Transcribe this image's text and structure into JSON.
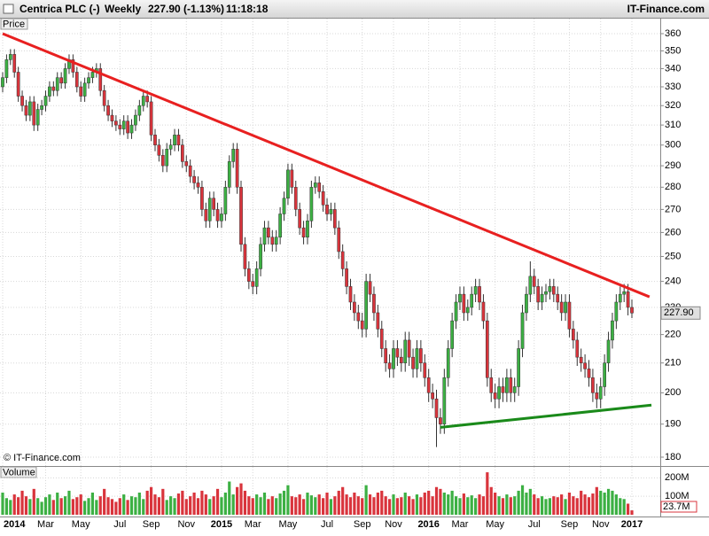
{
  "header": {
    "name": "Centrica PLC (-)",
    "period": "Weekly",
    "quote": "227.90 (-1.13%)",
    "time": "11:18:18",
    "brand": "IT-Finance.com"
  },
  "chart_data": {
    "type": "candlestick",
    "panel_label": "Price",
    "copyright": "© IT-Finance.com",
    "log_scale": true,
    "grid": true,
    "up_color": "#3cb043",
    "down_color": "#d9343c",
    "categories": [
      "2014",
      null,
      null,
      null,
      null,
      null,
      null,
      null,
      null,
      null,
      null,
      "Mar",
      null,
      null,
      null,
      null,
      null,
      null,
      null,
      null,
      "May",
      null,
      null,
      null,
      null,
      null,
      null,
      null,
      null,
      null,
      "Jul",
      null,
      null,
      null,
      null,
      null,
      null,
      null,
      "Sep",
      null,
      null,
      null,
      null,
      null,
      null,
      null,
      null,
      "Nov",
      null,
      null,
      null,
      null,
      null,
      null,
      null,
      null,
      "2015",
      null,
      null,
      null,
      null,
      null,
      null,
      null,
      "Mar",
      null,
      null,
      null,
      null,
      null,
      null,
      null,
      null,
      "May",
      null,
      null,
      null,
      null,
      null,
      null,
      null,
      null,
      null,
      "Jul",
      null,
      null,
      null,
      null,
      null,
      null,
      null,
      null,
      "Sep",
      null,
      null,
      null,
      null,
      null,
      null,
      null,
      "Nov",
      null,
      null,
      null,
      null,
      null,
      null,
      null,
      null,
      "2016",
      null,
      null,
      null,
      null,
      null,
      null,
      null,
      "Mar",
      null,
      null,
      null,
      null,
      null,
      null,
      null,
      null,
      "May",
      null,
      null,
      null,
      null,
      null,
      null,
      null,
      null,
      null,
      "Jul",
      null,
      null,
      null,
      null,
      null,
      null,
      null,
      null,
      "Sep",
      null,
      null,
      null,
      null,
      null,
      null,
      null,
      "Nov",
      null,
      null,
      null,
      null,
      null,
      null,
      null,
      "2017"
    ],
    "open": [
      330,
      335,
      345,
      348,
      338,
      325,
      320,
      315,
      322,
      310,
      318,
      320,
      325,
      330,
      328,
      335,
      332,
      340,
      345,
      338,
      330,
      325,
      332,
      335,
      338,
      340,
      328,
      320,
      315,
      312,
      310,
      308,
      312,
      306,
      310,
      315,
      320,
      325,
      322,
      305,
      300,
      295,
      290,
      298,
      300,
      305,
      300,
      292,
      290,
      285,
      282,
      280,
      270,
      265,
      275,
      270,
      265,
      268,
      280,
      292,
      298,
      280,
      255,
      245,
      240,
      238,
      245,
      255,
      262,
      258,
      255,
      258,
      268,
      275,
      288,
      280,
      270,
      262,
      258,
      265,
      280,
      282,
      278,
      272,
      268,
      270,
      262,
      252,
      245,
      238,
      232,
      228,
      225,
      222,
      240,
      235,
      228,
      222,
      215,
      210,
      208,
      215,
      212,
      210,
      218,
      212,
      208,
      215,
      210,
      205,
      200,
      198,
      192,
      190,
      205,
      215,
      225,
      232,
      235,
      228,
      230,
      235,
      238,
      232,
      225,
      205,
      200,
      198,
      202,
      200,
      205,
      200,
      202,
      215,
      228,
      235,
      242,
      238,
      232,
      235,
      236,
      238,
      235,
      232,
      228,
      232,
      222,
      218,
      212,
      210,
      208,
      205,
      200,
      198,
      202,
      210,
      218,
      225,
      232,
      235,
      236,
      230
    ],
    "high": [
      338,
      348,
      351,
      351,
      341,
      328,
      323,
      325,
      325,
      321,
      323,
      328,
      333,
      333,
      338,
      338,
      343,
      348,
      348,
      341,
      333,
      335,
      338,
      341,
      343,
      343,
      331,
      323,
      318,
      315,
      313,
      315,
      315,
      313,
      318,
      323,
      328,
      328,
      325,
      308,
      303,
      298,
      301,
      303,
      308,
      308,
      303,
      295,
      293,
      288,
      285,
      283,
      273,
      278,
      278,
      273,
      271,
      283,
      295,
      301,
      301,
      283,
      258,
      248,
      243,
      248,
      258,
      265,
      265,
      261,
      261,
      271,
      278,
      291,
      291,
      283,
      273,
      265,
      268,
      283,
      285,
      285,
      281,
      275,
      273,
      273,
      265,
      255,
      248,
      241,
      235,
      231,
      228,
      243,
      243,
      238,
      231,
      225,
      218,
      213,
      218,
      218,
      215,
      221,
      221,
      215,
      218,
      218,
      213,
      208,
      203,
      201,
      195,
      208,
      218,
      228,
      235,
      238,
      238,
      233,
      238,
      241,
      241,
      235,
      228,
      208,
      203,
      205,
      205,
      208,
      208,
      205,
      218,
      231,
      238,
      248,
      245,
      241,
      238,
      239,
      241,
      241,
      238,
      235,
      235,
      235,
      225,
      221,
      215,
      213,
      211,
      208,
      203,
      205,
      213,
      221,
      228,
      235,
      238,
      239,
      239,
      233
    ],
    "low": [
      327,
      332,
      342,
      335,
      322,
      317,
      312,
      312,
      307,
      307,
      315,
      317,
      322,
      325,
      325,
      329,
      329,
      337,
      335,
      327,
      322,
      322,
      329,
      332,
      335,
      325,
      317,
      312,
      309,
      307,
      305,
      305,
      303,
      303,
      307,
      312,
      317,
      319,
      302,
      297,
      292,
      287,
      287,
      295,
      297,
      297,
      289,
      287,
      282,
      279,
      277,
      267,
      262,
      262,
      267,
      262,
      262,
      265,
      277,
      289,
      277,
      252,
      242,
      237,
      235,
      235,
      242,
      252,
      255,
      252,
      252,
      255,
      265,
      272,
      277,
      267,
      259,
      255,
      255,
      262,
      277,
      275,
      269,
      265,
      265,
      259,
      249,
      242,
      235,
      229,
      225,
      222,
      219,
      219,
      232,
      225,
      219,
      212,
      207,
      205,
      205,
      209,
      207,
      207,
      209,
      205,
      205,
      207,
      202,
      197,
      195,
      183,
      187,
      187,
      202,
      212,
      222,
      229,
      225,
      225,
      227,
      232,
      229,
      222,
      202,
      197,
      195,
      195,
      197,
      197,
      197,
      197,
      199,
      212,
      225,
      232,
      235,
      229,
      229,
      232,
      233,
      232,
      229,
      225,
      225,
      219,
      215,
      209,
      207,
      205,
      202,
      197,
      195,
      195,
      199,
      207,
      215,
      222,
      229,
      232,
      227,
      226
    ],
    "close": [
      335,
      345,
      348,
      338,
      325,
      320,
      315,
      322,
      310,
      318,
      320,
      325,
      330,
      328,
      335,
      332,
      340,
      345,
      338,
      330,
      325,
      332,
      335,
      338,
      340,
      328,
      320,
      315,
      312,
      310,
      308,
      312,
      306,
      310,
      315,
      320,
      325,
      322,
      305,
      300,
      295,
      290,
      298,
      300,
      305,
      300,
      292,
      290,
      285,
      282,
      280,
      270,
      265,
      275,
      270,
      265,
      268,
      280,
      292,
      298,
      280,
      255,
      245,
      240,
      238,
      245,
      255,
      262,
      258,
      255,
      258,
      268,
      275,
      288,
      280,
      270,
      262,
      258,
      265,
      280,
      282,
      278,
      272,
      268,
      270,
      262,
      252,
      245,
      238,
      232,
      228,
      225,
      222,
      240,
      235,
      228,
      222,
      215,
      210,
      208,
      215,
      212,
      210,
      218,
      212,
      208,
      215,
      210,
      205,
      200,
      198,
      192,
      190,
      205,
      215,
      225,
      232,
      235,
      228,
      230,
      235,
      238,
      232,
      225,
      205,
      200,
      198,
      202,
      200,
      205,
      200,
      202,
      215,
      228,
      235,
      242,
      238,
      232,
      235,
      236,
      238,
      235,
      232,
      228,
      232,
      222,
      218,
      212,
      210,
      208,
      205,
      200,
      198,
      202,
      210,
      218,
      225,
      232,
      235,
      236,
      230,
      227.9
    ],
    "last_price_label": "227.90",
    "ylim": [
      180,
      360
    ],
    "yticks": [
      180,
      190,
      200,
      210,
      220,
      230,
      240,
      250,
      260,
      270,
      280,
      290,
      300,
      310,
      320,
      330,
      340,
      350,
      360
    ],
    "trendlines": [
      {
        "color": "#e82020",
        "points": [
          [
            0,
            360
          ],
          [
            165.5,
            234
          ]
        ]
      },
      {
        "color": "#1a8a1a",
        "points": [
          [
            112,
            189
          ],
          [
            166,
            196
          ]
        ]
      }
    ],
    "volume": {
      "panel_label": "Volume",
      "ylim": [
        0,
        240
      ],
      "yticks": [
        {
          "value": 100,
          "label": "100M"
        },
        {
          "value": 200,
          "label": "200M"
        }
      ],
      "last_label": "23.7M",
      "values": [
        120,
        90,
        80,
        110,
        95,
        130,
        100,
        85,
        140,
        90,
        70,
        95,
        110,
        80,
        120,
        90,
        100,
        130,
        85,
        95,
        110,
        75,
        90,
        120,
        80,
        100,
        140,
        95,
        85,
        70,
        90,
        110,
        80,
        100,
        95,
        120,
        85,
        130,
        150,
        110,
        95,
        140,
        80,
        100,
        90,
        115,
        130,
        85,
        100,
        120,
        90,
        130,
        110,
        85,
        100,
        140,
        95,
        120,
        180,
        110,
        150,
        170,
        130,
        100,
        90,
        110,
        95,
        120,
        85,
        100,
        90,
        115,
        130,
        160,
        100,
        95,
        110,
        85,
        120,
        105,
        95,
        110,
        90,
        120,
        85,
        100,
        130,
        150,
        110,
        95,
        120,
        100,
        90,
        160,
        110,
        95,
        120,
        130,
        100,
        85,
        110,
        90,
        95,
        120,
        100,
        85,
        110,
        95,
        120,
        130,
        100,
        150,
        140,
        120,
        110,
        130,
        100,
        90,
        115,
        95,
        105,
        90,
        110,
        100,
        230,
        150,
        120,
        100,
        90,
        110,
        95,
        100,
        130,
        160,
        120,
        140,
        110,
        90,
        100,
        85,
        90,
        100,
        95,
        110,
        85,
        120,
        100,
        90,
        130,
        110,
        95,
        115,
        150,
        130,
        120,
        140,
        130,
        110,
        90,
        85,
        60,
        23.7
      ]
    }
  }
}
